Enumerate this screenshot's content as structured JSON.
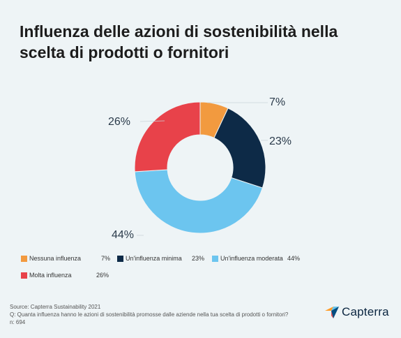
{
  "chart_data": {
    "type": "pie",
    "title": "Influenza delle azioni di sostenibilità nella scelta di prodotti o fornitori",
    "categories": [
      "Nessuna influenza",
      "Un'influenza minima",
      "Un'influenza moderata",
      "Molta influenza"
    ],
    "values": [
      7,
      23,
      44,
      26
    ],
    "value_labels": [
      "7%",
      "23%",
      "44%",
      "26%"
    ],
    "colors": [
      "#f29a3f",
      "#0d2a47",
      "#6cc5ef",
      "#e8424a"
    ],
    "donut": true,
    "legend_position": "bottom-left"
  },
  "footer": {
    "source": "Source: Capterra Sustainability 2021",
    "question": "Q: Quanta influenza hanno le azioni di sostenibilità promosse dalle aziende nella tua scelta di prodotti o fornitori?",
    "sample": "n: 694"
  },
  "brand": {
    "name": "Capterra",
    "colors": [
      "#ff9d28",
      "#68c5ed",
      "#044d80",
      "#e54747"
    ]
  }
}
